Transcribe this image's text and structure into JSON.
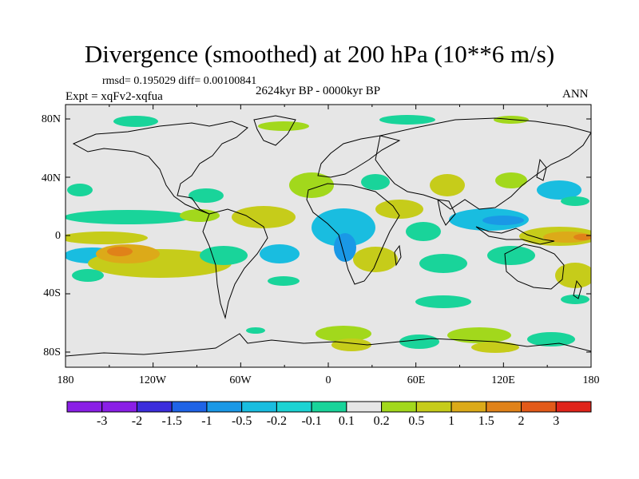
{
  "title": "Divergence (smoothed) at 200 hPa (10**6 m/s)",
  "stats": "rmsd= 0.195029 diff= 0.00100841",
  "experiment": "Expt = xqFv2-xqfua",
  "period": "2624kyr BP - 0000kyr BP",
  "season": "ANN",
  "axes": {
    "lat_labels": [
      "80N",
      "40N",
      "0",
      "40S",
      "80S"
    ],
    "lon_labels": [
      "180",
      "120W",
      "60W",
      "0",
      "60E",
      "120E",
      "180"
    ]
  },
  "colorbar": {
    "labels": [
      "-3",
      "-2",
      "-1.5",
      "-1",
      "-0.5",
      "-0.2",
      "-0.1",
      "0.1",
      "0.2",
      "0.5",
      "1",
      "1.5",
      "2",
      "3"
    ],
    "colors": [
      "#8a1fe6",
      "#3c2ddc",
      "#1f63e6",
      "#1a98e6",
      "#19bde0",
      "#1cd3d3",
      "#19d49a",
      "#e6e6e6",
      "#a2d81c",
      "#c6cc1a",
      "#dcaa19",
      "#e08219",
      "#e25a19",
      "#e0241a"
    ]
  }
}
